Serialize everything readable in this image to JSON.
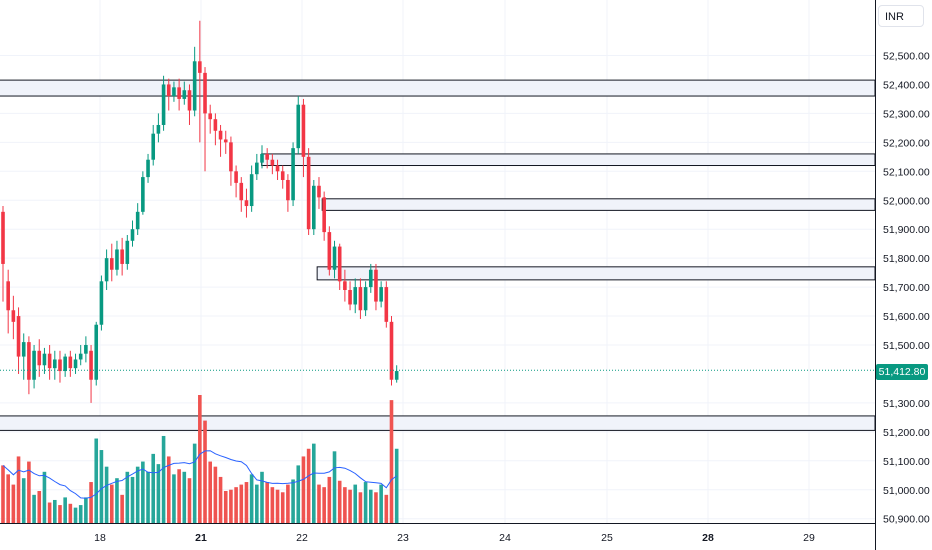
{
  "currency": "INR",
  "last_price_label": "51,412.80",
  "colors": {
    "up": "#089981",
    "down": "#f23645",
    "volume_up": "#26a69a",
    "volume_down": "#ef5350",
    "ma_line": "#2962ff",
    "zone_fill": "#f0f3fa",
    "zone_border": "#131722"
  },
  "chart_data": {
    "type": "candlestick",
    "y_axis": {
      "ticks": [
        "52,500.00",
        "52,400.00",
        "52,300.00",
        "52,200.00",
        "52,100.00",
        "52,000.00",
        "51,900.00",
        "51,800.00",
        "51,700.00",
        "51,600.00",
        "51,500.00",
        "51,300.00",
        "51,200.00",
        "51,100.00",
        "51,000.00",
        "50,900.00"
      ],
      "range": [
        50880,
        52620
      ]
    },
    "x_axis": {
      "ticks": [
        {
          "label": "18",
          "bold": false
        },
        {
          "label": "21",
          "bold": true
        },
        {
          "label": "22",
          "bold": false
        },
        {
          "label": "23",
          "bold": false
        },
        {
          "label": "24",
          "bold": false
        },
        {
          "label": "25",
          "bold": false
        },
        {
          "label": "28",
          "bold": true
        },
        {
          "label": "29",
          "bold": false
        }
      ]
    },
    "last_price": 51412.8,
    "zones": [
      {
        "from": 52360,
        "to": 52415,
        "start": "begin"
      },
      {
        "from": 52120,
        "to": 52160,
        "start": "21.6"
      },
      {
        "from": 51965,
        "to": 52005,
        "start": "22.2"
      },
      {
        "from": 51725,
        "to": 51770,
        "start": "22.15"
      },
      {
        "from": 51205,
        "to": 51255,
        "start": "begin"
      }
    ],
    "candles": [
      [
        51960,
        51780,
        51980,
        51650
      ],
      [
        51720,
        51620,
        51760,
        51540
      ],
      [
        51620,
        51580,
        51670,
        51520
      ],
      [
        51600,
        51460,
        51630,
        51400
      ],
      [
        51460,
        51510,
        51540,
        51380
      ],
      [
        51510,
        51380,
        51530,
        51330
      ],
      [
        51380,
        51480,
        51500,
        51350
      ],
      [
        51480,
        51430,
        51520,
        51390
      ],
      [
        51430,
        51470,
        51490,
        51400
      ],
      [
        51470,
        51420,
        51500,
        51380
      ],
      [
        51420,
        51450,
        51480,
        51380
      ],
      [
        51450,
        51410,
        51480,
        51370
      ],
      [
        51410,
        51460,
        51470,
        51390
      ],
      [
        51460,
        51420,
        51480,
        51390
      ],
      [
        51420,
        51450,
        51470,
        51400
      ],
      [
        51450,
        51470,
        51500,
        51430
      ],
      [
        51470,
        51500,
        51530,
        51440
      ],
      [
        51480,
        51380,
        51500,
        51300
      ],
      [
        51380,
        51570,
        51580,
        51360
      ],
      [
        51570,
        51720,
        51740,
        51550
      ],
      [
        51720,
        51800,
        51830,
        51690
      ],
      [
        51800,
        51760,
        51850,
        51720
      ],
      [
        51760,
        51830,
        51860,
        51740
      ],
      [
        51830,
        51780,
        51870,
        51740
      ],
      [
        51780,
        51860,
        51880,
        51760
      ],
      [
        51860,
        51900,
        51930,
        51840
      ],
      [
        51900,
        51960,
        51990,
        51880
      ],
      [
        51960,
        52080,
        52100,
        51950
      ],
      [
        52080,
        52140,
        52160,
        52060
      ],
      [
        52140,
        52230,
        52260,
        52120
      ],
      [
        52230,
        52260,
        52300,
        52200
      ],
      [
        52260,
        52400,
        52430,
        52240
      ],
      [
        52400,
        52360,
        52420,
        52310
      ],
      [
        52360,
        52390,
        52410,
        52340
      ],
      [
        52390,
        52350,
        52420,
        52310
      ],
      [
        52350,
        52380,
        52410,
        52330
      ],
      [
        52380,
        52310,
        52400,
        52260
      ],
      [
        52310,
        52480,
        52530,
        52290
      ],
      [
        52480,
        52440,
        52620,
        52200
      ],
      [
        52440,
        52300,
        52460,
        52100
      ],
      [
        52300,
        52280,
        52330,
        52230
      ],
      [
        52280,
        52240,
        52300,
        52190
      ],
      [
        52240,
        52210,
        52260,
        52150
      ],
      [
        52210,
        52200,
        52240,
        52160
      ],
      [
        52200,
        52100,
        52220,
        52050
      ],
      [
        52100,
        52060,
        52120,
        52010
      ],
      [
        52060,
        52000,
        52080,
        51960
      ],
      [
        52000,
        51980,
        52040,
        51940
      ],
      [
        51980,
        52090,
        52120,
        51960
      ],
      [
        52090,
        52130,
        52160,
        52070
      ],
      [
        52130,
        52160,
        52190,
        52110
      ],
      [
        52160,
        52140,
        52180,
        52110
      ],
      [
        52140,
        52120,
        52160,
        52090
      ],
      [
        52120,
        52100,
        52140,
        52070
      ],
      [
        52100,
        52070,
        52120,
        52040
      ],
      [
        52070,
        52000,
        52090,
        51960
      ],
      [
        52000,
        52180,
        52200,
        51980
      ],
      [
        52180,
        52330,
        52360,
        52160
      ],
      [
        52330,
        52150,
        52350,
        52080
      ],
      [
        52150,
        51900,
        52180,
        51880
      ],
      [
        51900,
        52050,
        52070,
        51880
      ],
      [
        52050,
        52010,
        52080,
        51970
      ],
      [
        52010,
        51890,
        52030,
        51860
      ],
      [
        51890,
        51760,
        51910,
        51740
      ],
      [
        51760,
        51840,
        51860,
        51730
      ],
      [
        51840,
        51720,
        51850,
        51690
      ],
      [
        51720,
        51690,
        51760,
        51650
      ],
      [
        51690,
        51640,
        51720,
        51620
      ],
      [
        51640,
        51700,
        51730,
        51610
      ],
      [
        51700,
        51620,
        51730,
        51590
      ],
      [
        51620,
        51700,
        51720,
        51600
      ],
      [
        51700,
        51760,
        51780,
        51680
      ],
      [
        51760,
        51650,
        51780,
        51620
      ],
      [
        51650,
        51700,
        51720,
        51630
      ],
      [
        51700,
        51580,
        51720,
        51560
      ],
      [
        51580,
        51380,
        51600,
        51360
      ],
      [
        51380,
        51410,
        51430,
        51370
      ]
    ],
    "volumes": [
      [
        45,
        0
      ],
      [
        38,
        0
      ],
      [
        30,
        0
      ],
      [
        52,
        0
      ],
      [
        35,
        1
      ],
      [
        48,
        0
      ],
      [
        22,
        1
      ],
      [
        25,
        0
      ],
      [
        40,
        1
      ],
      [
        16,
        0
      ],
      [
        18,
        1
      ],
      [
        14,
        0
      ],
      [
        20,
        1
      ],
      [
        15,
        0
      ],
      [
        12,
        1
      ],
      [
        14,
        1
      ],
      [
        20,
        1
      ],
      [
        32,
        0
      ],
      [
        66,
        1
      ],
      [
        57,
        1
      ],
      [
        44,
        1
      ],
      [
        30,
        0
      ],
      [
        35,
        1
      ],
      [
        22,
        0
      ],
      [
        40,
        1
      ],
      [
        36,
        1
      ],
      [
        44,
        1
      ],
      [
        48,
        1
      ],
      [
        40,
        1
      ],
      [
        54,
        1
      ],
      [
        46,
        1
      ],
      [
        68,
        1
      ],
      [
        52,
        0
      ],
      [
        38,
        1
      ],
      [
        42,
        0
      ],
      [
        40,
        1
      ],
      [
        35,
        0
      ],
      [
        62,
        1
      ],
      [
        100,
        0
      ],
      [
        80,
        0
      ],
      [
        48,
        0
      ],
      [
        44,
        0
      ],
      [
        36,
        0
      ],
      [
        25,
        0
      ],
      [
        26,
        0
      ],
      [
        28,
        0
      ],
      [
        30,
        0
      ],
      [
        32,
        0
      ],
      [
        38,
        1
      ],
      [
        30,
        1
      ],
      [
        40,
        1
      ],
      [
        32,
        0
      ],
      [
        28,
        0
      ],
      [
        26,
        0
      ],
      [
        24,
        0
      ],
      [
        30,
        0
      ],
      [
        34,
        1
      ],
      [
        45,
        1
      ],
      [
        52,
        0
      ],
      [
        58,
        0
      ],
      [
        62,
        1
      ],
      [
        30,
        0
      ],
      [
        28,
        0
      ],
      [
        36,
        0
      ],
      [
        56,
        1
      ],
      [
        33,
        0
      ],
      [
        28,
        0
      ],
      [
        26,
        0
      ],
      [
        30,
        1
      ],
      [
        24,
        0
      ],
      [
        32,
        1
      ],
      [
        26,
        1
      ],
      [
        24,
        0
      ],
      [
        30,
        1
      ],
      [
        22,
        0
      ],
      [
        96,
        0
      ],
      [
        58,
        1
      ]
    ]
  }
}
